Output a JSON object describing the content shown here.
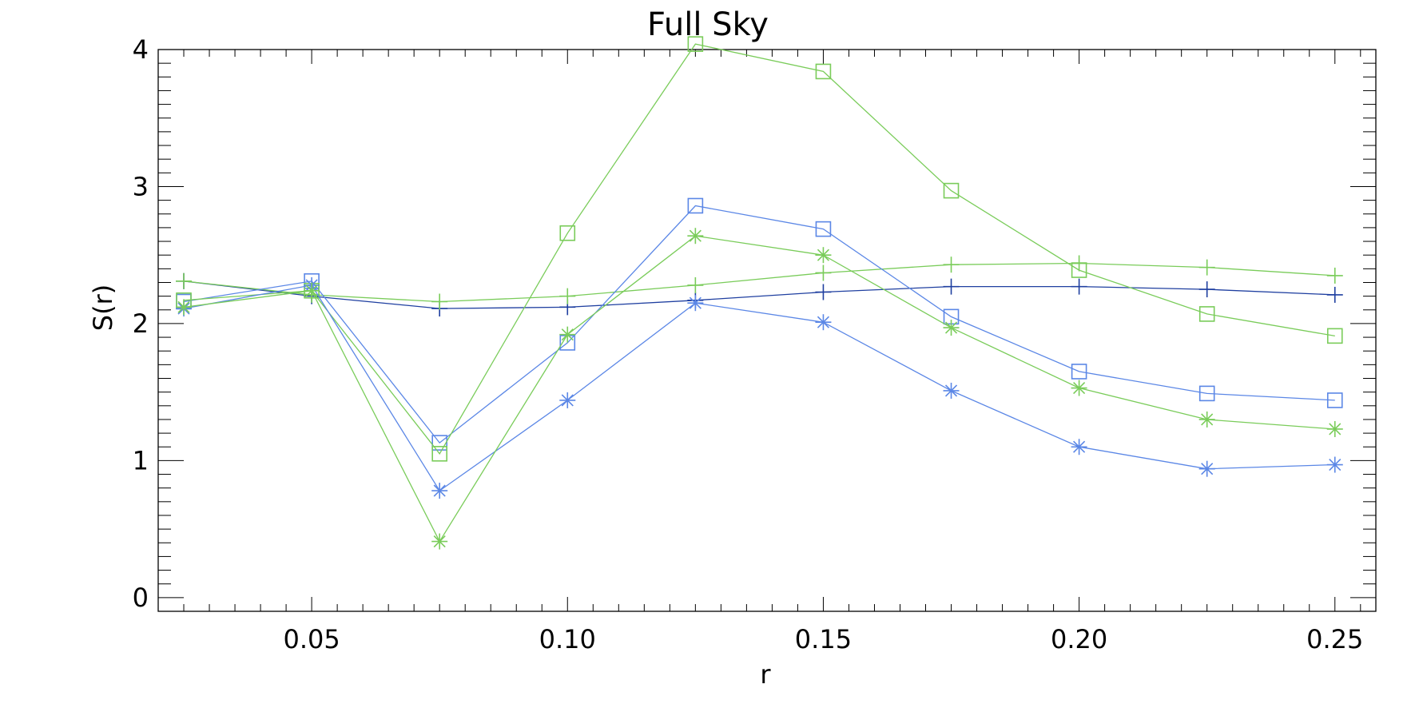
{
  "chart_data": {
    "type": "line",
    "title": "Full Sky",
    "xlabel": "r",
    "ylabel": "S(r)",
    "xlim": [
      0.02,
      0.258
    ],
    "ylim": [
      -0.1,
      4.0
    ],
    "xticks": [
      "0.05",
      "0.10",
      "0.15",
      "0.20",
      "0.25"
    ],
    "yticks": [
      "0",
      "1",
      "2",
      "3",
      "4"
    ],
    "x": [
      0.025,
      0.05,
      0.075,
      0.1,
      0.125,
      0.15,
      0.175,
      0.2,
      0.225,
      0.25
    ],
    "series": [
      {
        "color": "#1f3fa0",
        "marker": "plus",
        "values": [
          2.31,
          2.2,
          2.11,
          2.12,
          2.17,
          2.23,
          2.27,
          2.27,
          2.25,
          2.21
        ]
      },
      {
        "color": "#7acc5a",
        "marker": "plus",
        "values": [
          2.31,
          2.21,
          2.16,
          2.2,
          2.28,
          2.37,
          2.43,
          2.44,
          2.41,
          2.35
        ]
      },
      {
        "color": "#5b87e6",
        "marker": "square",
        "values": [
          2.16,
          2.31,
          1.13,
          1.86,
          2.86,
          2.69,
          2.05,
          1.65,
          1.49,
          1.44
        ]
      },
      {
        "color": "#7acc5a",
        "marker": "square",
        "values": [
          2.17,
          2.24,
          1.05,
          2.66,
          4.04,
          3.84,
          2.97,
          2.39,
          2.07,
          1.91
        ]
      },
      {
        "color": "#5b87e6",
        "marker": "asterisk",
        "values": [
          2.11,
          2.28,
          0.78,
          1.44,
          2.15,
          2.01,
          1.51,
          1.1,
          0.94,
          0.97
        ]
      },
      {
        "color": "#7acc5a",
        "marker": "asterisk",
        "values": [
          2.12,
          2.24,
          0.41,
          1.92,
          2.64,
          2.5,
          1.97,
          1.53,
          1.3,
          1.23
        ]
      }
    ]
  }
}
